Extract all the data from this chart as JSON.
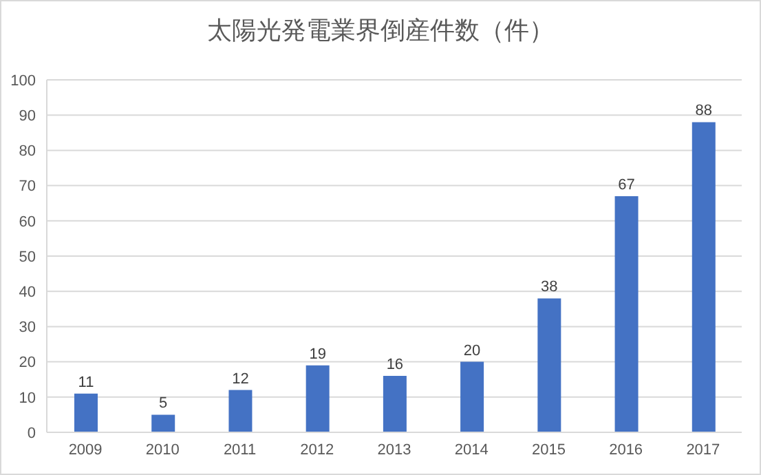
{
  "chart_data": {
    "type": "bar",
    "title": "太陽光発電業界倒産件数（件）",
    "categories": [
      "2009",
      "2010",
      "2011",
      "2012",
      "2013",
      "2014",
      "2015",
      "2016",
      "2017"
    ],
    "values": [
      11,
      5,
      12,
      19,
      16,
      20,
      38,
      67,
      88
    ],
    "color": "#4472c4",
    "ylim": [
      0,
      100
    ],
    "yticks": [
      0,
      10,
      20,
      30,
      40,
      50,
      60,
      70,
      80,
      90,
      100
    ],
    "grid": "y",
    "data_labels": true,
    "legend": false
  }
}
